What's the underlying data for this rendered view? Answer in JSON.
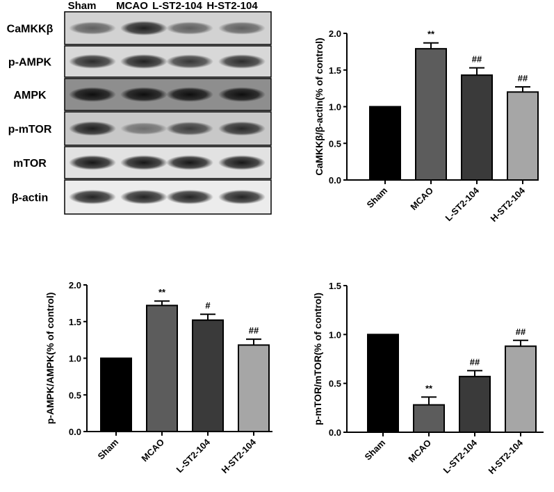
{
  "blot": {
    "groups": [
      "Sham",
      "MCAO",
      "L-ST2-104",
      "H-ST2-104"
    ],
    "proteins": [
      "CaMKKβ",
      "p-AMPK",
      "AMPK",
      "p-mTOR",
      "mTOR",
      "β-actin"
    ],
    "band_intensity": [
      [
        0.55,
        0.85,
        0.55,
        0.55
      ],
      [
        0.8,
        0.85,
        0.75,
        0.8
      ],
      [
        0.9,
        0.9,
        0.9,
        0.9
      ],
      [
        0.85,
        0.45,
        0.7,
        0.8
      ],
      [
        0.9,
        0.9,
        0.9,
        0.9
      ],
      [
        0.85,
        0.85,
        0.85,
        0.85
      ]
    ],
    "panel_backgrounds": [
      "#d2d2d2",
      "#d8d8d8",
      "#8e8e8e",
      "#c8c8c8",
      "#e2e2e2",
      "#ececec"
    ]
  },
  "chart_data": [
    {
      "type": "bar",
      "categories": [
        "Sham",
        "MCAO",
        "L-ST2-104",
        "H-ST2-104"
      ],
      "values": [
        1.0,
        1.79,
        1.43,
        1.2
      ],
      "errors": [
        0,
        0.08,
        0.1,
        0.07
      ],
      "annotations": [
        "",
        "**",
        "##",
        "##"
      ],
      "colors": [
        "#000000",
        "#5c5c5c",
        "#3a3a3a",
        "#a6a6a6"
      ],
      "ylabel": "CaMKKβ/β-actin(% of control)",
      "xlabel": "",
      "ylim": [
        0,
        2.0
      ],
      "yticks": [
        "0.0",
        "0.5",
        "1.0",
        "1.5",
        "2.0"
      ],
      "grid": false
    },
    {
      "type": "bar",
      "categories": [
        "Sham",
        "MCAO",
        "L-ST2-104",
        "H-ST2-104"
      ],
      "values": [
        1.0,
        1.72,
        1.52,
        1.18
      ],
      "errors": [
        0,
        0.06,
        0.08,
        0.08
      ],
      "annotations": [
        "",
        "**",
        "#",
        "##"
      ],
      "colors": [
        "#000000",
        "#5c5c5c",
        "#3a3a3a",
        "#a6a6a6"
      ],
      "ylabel": "p-AMPK/AMPK(% of control)",
      "xlabel": "",
      "ylim": [
        0,
        2.0
      ],
      "yticks": [
        "0.0",
        "0.5",
        "1.0",
        "1.5",
        "2.0"
      ],
      "grid": false
    },
    {
      "type": "bar",
      "categories": [
        "Sham",
        "MCAO",
        "L-ST2-104",
        "H-ST2-104"
      ],
      "values": [
        1.0,
        0.28,
        0.57,
        0.88
      ],
      "errors": [
        0,
        0.08,
        0.06,
        0.06
      ],
      "annotations": [
        "",
        "**",
        "##",
        "##"
      ],
      "colors": [
        "#000000",
        "#5c5c5c",
        "#3a3a3a",
        "#a6a6a6"
      ],
      "ylabel": "p-mTOR/mTOR(% of control)",
      "xlabel": "",
      "ylim": [
        0,
        1.5
      ],
      "yticks": [
        "0.0",
        "0.5",
        "1.0",
        "1.5"
      ],
      "grid": false
    }
  ]
}
